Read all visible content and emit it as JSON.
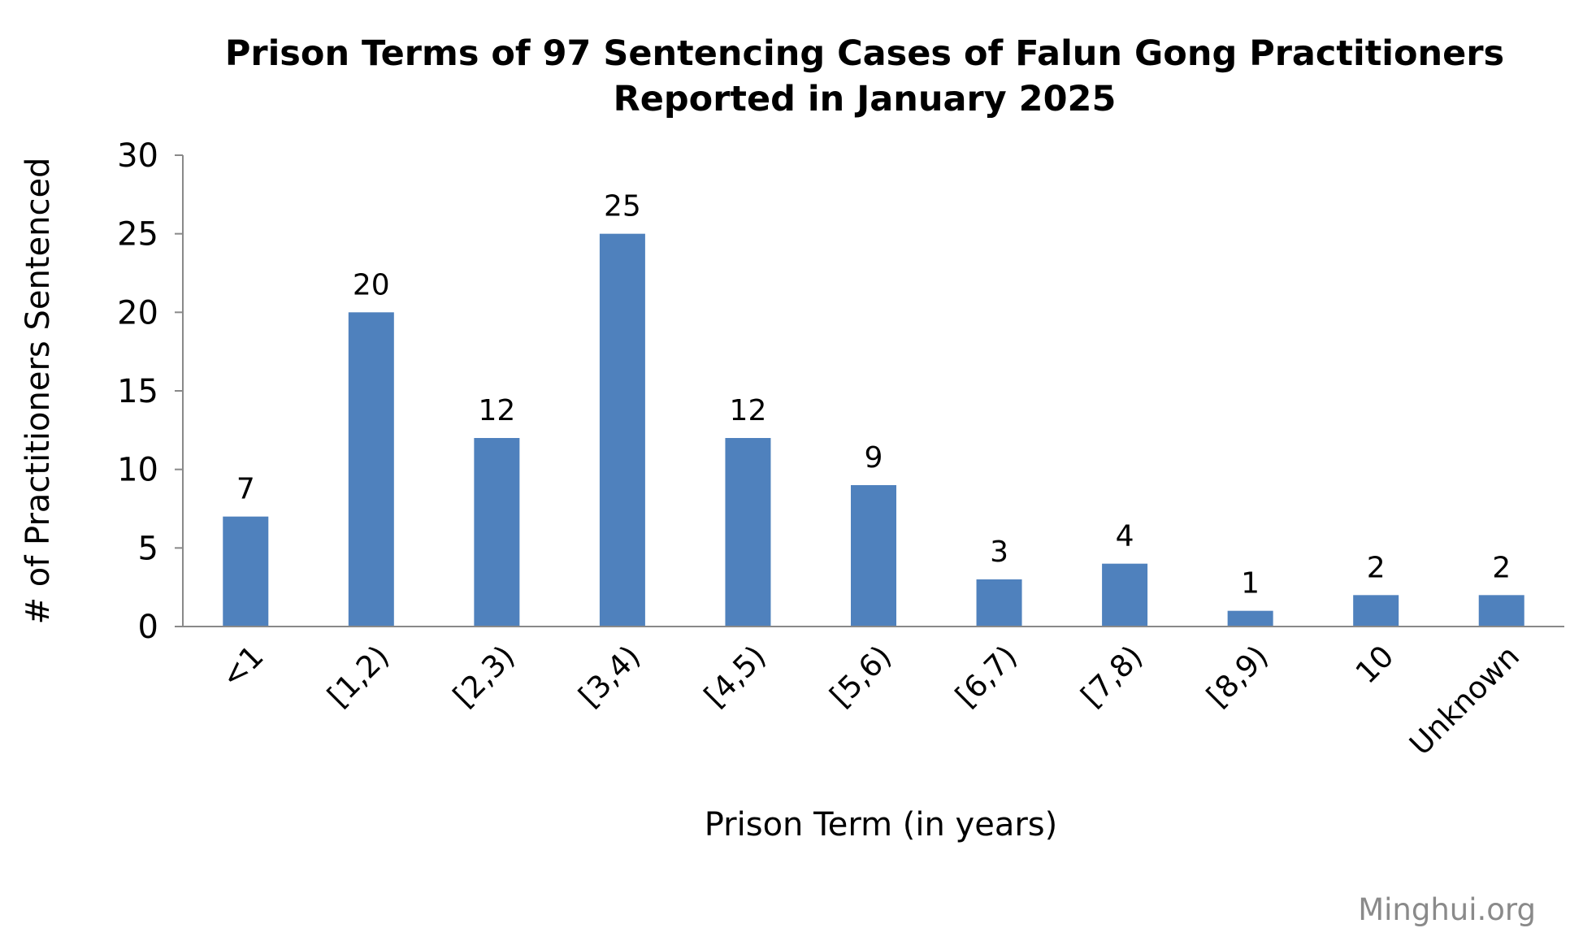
{
  "chart_data": {
    "type": "bar",
    "title": "Prison Terms of 97 Sentencing Cases of Falun Gong Practitioners",
    "subtitle": "Reported in January 2025",
    "xlabel": "Prison Term (in years)",
    "ylabel": "# of Practitioners Sentenced",
    "categories": [
      "<1",
      "[1,2)",
      "[2,3)",
      "[3,4)",
      "[4,5)",
      "[5,6)",
      "[6,7)",
      "[7,8)",
      "[8,9)",
      "10",
      "Unknown"
    ],
    "values": [
      7,
      20,
      12,
      25,
      12,
      9,
      3,
      4,
      1,
      2,
      2
    ],
    "ylim": [
      0,
      30
    ],
    "yticks": [
      0,
      5,
      10,
      15,
      20,
      25,
      30
    ],
    "data_labels": true,
    "grid": false,
    "legend": "none",
    "bar_color": "#4f81bd",
    "axis_color": "#898989"
  },
  "credit": "Minghui.org"
}
